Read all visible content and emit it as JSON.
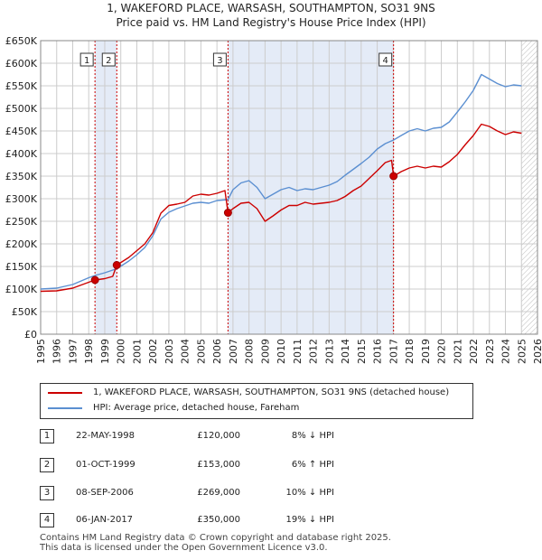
{
  "title_line1": "1, WAKEFORD PLACE, WARSASH, SOUTHAMPTON, SO31 9NS",
  "title_line2": "Price paid vs. HM Land Registry's House Price Index (HPI)",
  "legend": {
    "property_label": "1, WAKEFORD PLACE, WARSASH, SOUTHAMPTON, SO31 9NS (detached house)",
    "hpi_label": "HPI: Average price, detached house, Fareham"
  },
  "colors": {
    "property": "#cc0000",
    "hpi": "#5b8fd1",
    "shade": "#e4ebf7",
    "grid": "#cccccc"
  },
  "transactions": [
    {
      "num": "1",
      "date": "22-MAY-1998",
      "price": "£120,000",
      "hpi_diff": "8% ↓ HPI"
    },
    {
      "num": "2",
      "date": "01-OCT-1999",
      "price": "£153,000",
      "hpi_diff": "6% ↑ HPI"
    },
    {
      "num": "3",
      "date": "08-SEP-2006",
      "price": "£269,000",
      "hpi_diff": "10% ↓ HPI"
    },
    {
      "num": "4",
      "date": "06-JAN-2017",
      "price": "£350,000",
      "hpi_diff": "19% ↓ HPI"
    }
  ],
  "footer_line1": "Contains HM Land Registry data © Crown copyright and database right 2025.",
  "footer_line2": "This data is licensed under the Open Government Licence v3.0.",
  "chart_data": {
    "type": "line",
    "xlim": [
      1995,
      2026
    ],
    "ylim": [
      0,
      650000
    ],
    "yticks": [
      0,
      50000,
      100000,
      150000,
      200000,
      250000,
      300000,
      350000,
      400000,
      450000,
      500000,
      550000,
      600000,
      650000
    ],
    "ytick_labels": [
      "£0",
      "£50K",
      "£100K",
      "£150K",
      "£200K",
      "£250K",
      "£300K",
      "£350K",
      "£400K",
      "£450K",
      "£500K",
      "£550K",
      "£600K",
      "£650K"
    ],
    "xticks": [
      1995,
      1996,
      1997,
      1998,
      1999,
      2000,
      2001,
      2002,
      2003,
      2004,
      2005,
      2006,
      2007,
      2008,
      2009,
      2010,
      2011,
      2012,
      2013,
      2014,
      2015,
      2016,
      2017,
      2018,
      2019,
      2020,
      2021,
      2022,
      2023,
      2024,
      2025,
      2026
    ],
    "grid": true,
    "shaded_periods": [
      [
        1998.39,
        1999.75
      ],
      [
        2006.69,
        2017.02
      ]
    ],
    "hatched_after": 2025.0,
    "markers": [
      {
        "label": "1",
        "x": 1998.39,
        "y": 120000
      },
      {
        "label": "2",
        "x": 1999.75,
        "y": 153000
      },
      {
        "label": "3",
        "x": 2006.69,
        "y": 269000
      },
      {
        "label": "4",
        "x": 2017.02,
        "y": 350000
      }
    ],
    "series": [
      {
        "name": "1, WAKEFORD PLACE, WARSASH, SOUTHAMPTON, SO31 9NS (detached house)",
        "color": "#cc0000",
        "points": [
          [
            1995.0,
            95000
          ],
          [
            1996.0,
            96000
          ],
          [
            1997.0,
            102000
          ],
          [
            1998.0,
            115000
          ],
          [
            1998.39,
            120000
          ],
          [
            1999.0,
            123000
          ],
          [
            1999.5,
            128000
          ],
          [
            1999.75,
            153000
          ],
          [
            2000.5,
            170000
          ],
          [
            2001.0,
            185000
          ],
          [
            2001.5,
            200000
          ],
          [
            2002.0,
            225000
          ],
          [
            2002.5,
            268000
          ],
          [
            2003.0,
            285000
          ],
          [
            2003.5,
            288000
          ],
          [
            2004.0,
            292000
          ],
          [
            2004.5,
            306000
          ],
          [
            2005.0,
            310000
          ],
          [
            2005.5,
            308000
          ],
          [
            2006.0,
            312000
          ],
          [
            2006.5,
            318000
          ],
          [
            2006.69,
            269000
          ],
          [
            2007.0,
            278000
          ],
          [
            2007.5,
            290000
          ],
          [
            2008.0,
            292000
          ],
          [
            2008.5,
            278000
          ],
          [
            2009.0,
            250000
          ],
          [
            2009.5,
            262000
          ],
          [
            2010.0,
            275000
          ],
          [
            2010.5,
            285000
          ],
          [
            2011.0,
            285000
          ],
          [
            2011.5,
            292000
          ],
          [
            2012.0,
            288000
          ],
          [
            2012.5,
            290000
          ],
          [
            2013.0,
            292000
          ],
          [
            2013.5,
            296000
          ],
          [
            2014.0,
            305000
          ],
          [
            2014.5,
            318000
          ],
          [
            2015.0,
            328000
          ],
          [
            2015.5,
            345000
          ],
          [
            2016.0,
            362000
          ],
          [
            2016.5,
            380000
          ],
          [
            2016.9,
            385000
          ],
          [
            2017.02,
            350000
          ],
          [
            2017.5,
            360000
          ],
          [
            2018.0,
            368000
          ],
          [
            2018.5,
            372000
          ],
          [
            2019.0,
            368000
          ],
          [
            2019.5,
            372000
          ],
          [
            2020.0,
            370000
          ],
          [
            2020.5,
            382000
          ],
          [
            2021.0,
            398000
          ],
          [
            2021.5,
            420000
          ],
          [
            2022.0,
            440000
          ],
          [
            2022.5,
            465000
          ],
          [
            2023.0,
            460000
          ],
          [
            2023.5,
            450000
          ],
          [
            2024.0,
            442000
          ],
          [
            2024.5,
            448000
          ],
          [
            2025.0,
            445000
          ]
        ]
      },
      {
        "name": "HPI: Average price, detached house, Fareham",
        "color": "#5b8fd1",
        "points": [
          [
            1995.0,
            100000
          ],
          [
            1996.0,
            102000
          ],
          [
            1997.0,
            110000
          ],
          [
            1998.0,
            125000
          ],
          [
            1998.39,
            130000
          ],
          [
            1999.0,
            136000
          ],
          [
            1999.75,
            145000
          ],
          [
            2000.5,
            162000
          ],
          [
            2001.0,
            176000
          ],
          [
            2001.5,
            192000
          ],
          [
            2002.0,
            218000
          ],
          [
            2002.5,
            255000
          ],
          [
            2003.0,
            270000
          ],
          [
            2003.5,
            278000
          ],
          [
            2004.0,
            284000
          ],
          [
            2004.5,
            290000
          ],
          [
            2005.0,
            292000
          ],
          [
            2005.5,
            290000
          ],
          [
            2006.0,
            296000
          ],
          [
            2006.69,
            298000
          ],
          [
            2007.0,
            320000
          ],
          [
            2007.5,
            335000
          ],
          [
            2008.0,
            340000
          ],
          [
            2008.5,
            325000
          ],
          [
            2009.0,
            300000
          ],
          [
            2009.5,
            310000
          ],
          [
            2010.0,
            320000
          ],
          [
            2010.5,
            325000
          ],
          [
            2011.0,
            318000
          ],
          [
            2011.5,
            322000
          ],
          [
            2012.0,
            320000
          ],
          [
            2012.5,
            325000
          ],
          [
            2013.0,
            330000
          ],
          [
            2013.5,
            338000
          ],
          [
            2014.0,
            352000
          ],
          [
            2014.5,
            365000
          ],
          [
            2015.0,
            378000
          ],
          [
            2015.5,
            392000
          ],
          [
            2016.0,
            410000
          ],
          [
            2016.5,
            422000
          ],
          [
            2017.02,
            430000
          ],
          [
            2017.5,
            440000
          ],
          [
            2018.0,
            450000
          ],
          [
            2018.5,
            455000
          ],
          [
            2019.0,
            450000
          ],
          [
            2019.5,
            456000
          ],
          [
            2020.0,
            458000
          ],
          [
            2020.5,
            470000
          ],
          [
            2021.0,
            492000
          ],
          [
            2021.5,
            515000
          ],
          [
            2022.0,
            540000
          ],
          [
            2022.5,
            575000
          ],
          [
            2023.0,
            565000
          ],
          [
            2023.5,
            555000
          ],
          [
            2024.0,
            548000
          ],
          [
            2024.5,
            552000
          ],
          [
            2025.0,
            550000
          ]
        ]
      }
    ]
  }
}
